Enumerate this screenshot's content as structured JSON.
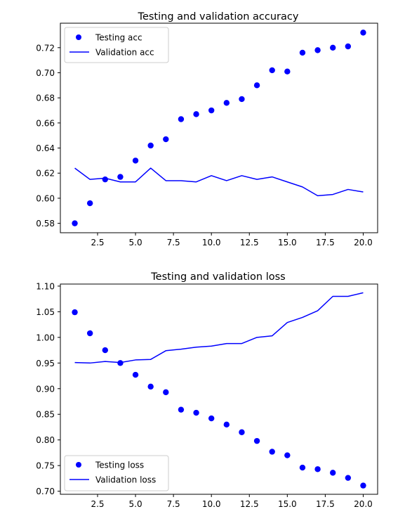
{
  "chart_data": [
    {
      "type": "line",
      "title": "Testing and validation accuracy",
      "xlabel": "",
      "ylabel": "",
      "x": [
        1,
        2,
        3,
        4,
        5,
        6,
        7,
        8,
        9,
        10,
        11,
        12,
        13,
        14,
        15,
        16,
        17,
        18,
        19,
        20
      ],
      "xlim": [
        0.05,
        20.95
      ],
      "ylim": [
        0.5725,
        0.7395
      ],
      "xticks": [
        2.5,
        5.0,
        7.5,
        10.0,
        12.5,
        15.0,
        17.5,
        20.0
      ],
      "xtick_labels": [
        "2.5",
        "5.0",
        "7.5",
        "10.0",
        "12.5",
        "15.0",
        "17.5",
        "20.0"
      ],
      "yticks": [
        0.58,
        0.6,
        0.62,
        0.64,
        0.66,
        0.68,
        0.7,
        0.72
      ],
      "ytick_labels": [
        "0.58",
        "0.60",
        "0.62",
        "0.64",
        "0.66",
        "0.68",
        "0.70",
        "0.72"
      ],
      "legend_position": "upper-left",
      "series": [
        {
          "name": "Testing acc",
          "style": "dots",
          "color": "#0000ff",
          "values": [
            0.58,
            0.596,
            0.615,
            0.617,
            0.63,
            0.642,
            0.647,
            0.663,
            0.667,
            0.67,
            0.676,
            0.679,
            0.69,
            0.702,
            0.701,
            0.716,
            0.718,
            0.72,
            0.721,
            0.732
          ]
        },
        {
          "name": "Validation acc",
          "style": "line",
          "color": "#0000ff",
          "values": [
            0.624,
            0.615,
            0.616,
            0.613,
            0.613,
            0.624,
            0.614,
            0.614,
            0.613,
            0.618,
            0.614,
            0.618,
            0.615,
            0.617,
            0.613,
            0.609,
            0.602,
            0.603,
            0.607,
            0.605
          ]
        }
      ]
    },
    {
      "type": "line",
      "title": "Testing and validation loss",
      "xlabel": "",
      "ylabel": "",
      "x": [
        1,
        2,
        3,
        4,
        5,
        6,
        7,
        8,
        9,
        10,
        11,
        12,
        13,
        14,
        15,
        16,
        17,
        18,
        19,
        20
      ],
      "xlim": [
        0.05,
        20.95
      ],
      "ylim": [
        0.694,
        1.104
      ],
      "xticks": [
        2.5,
        5.0,
        7.5,
        10.0,
        12.5,
        15.0,
        17.5,
        20.0
      ],
      "xtick_labels": [
        "2.5",
        "5.0",
        "7.5",
        "10.0",
        "12.5",
        "15.0",
        "17.5",
        "20.0"
      ],
      "yticks": [
        0.7,
        0.75,
        0.8,
        0.85,
        0.9,
        0.95,
        1.0,
        1.05,
        1.1
      ],
      "ytick_labels": [
        "0.70",
        "0.75",
        "0.80",
        "0.85",
        "0.90",
        "0.95",
        "1.00",
        "1.05",
        "1.10"
      ],
      "legend_position": "lower-left",
      "series": [
        {
          "name": "Testing loss",
          "style": "dots",
          "color": "#0000ff",
          "values": [
            1.049,
            1.008,
            0.975,
            0.95,
            0.927,
            0.904,
            0.893,
            0.859,
            0.853,
            0.842,
            0.83,
            0.815,
            0.798,
            0.777,
            0.77,
            0.746,
            0.743,
            0.736,
            0.726,
            0.711
          ]
        },
        {
          "name": "Validation loss",
          "style": "line",
          "color": "#0000ff",
          "values": [
            0.951,
            0.95,
            0.953,
            0.951,
            0.956,
            0.957,
            0.974,
            0.977,
            0.981,
            0.983,
            0.988,
            0.988,
            1.0,
            1.003,
            1.029,
            1.039,
            1.052,
            1.08,
            1.08,
            1.087
          ]
        }
      ]
    }
  ]
}
